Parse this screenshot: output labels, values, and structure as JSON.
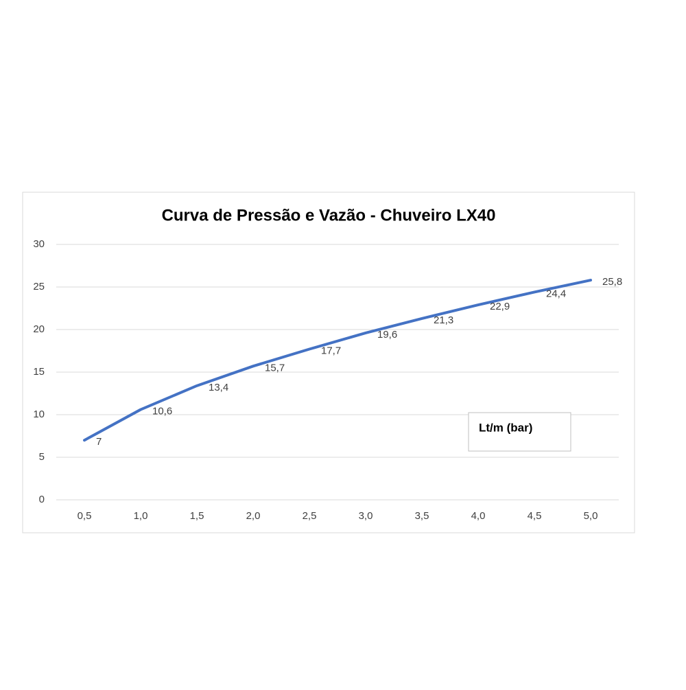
{
  "chart_data": {
    "type": "line",
    "title": "Curva de Pressão e Vazão - Chuveiro LX40",
    "annotation": "Lt/m (bar)",
    "categories": [
      "0,5",
      "1,0",
      "1,5",
      "2,0",
      "2,5",
      "3,0",
      "3,5",
      "4,0",
      "4,5",
      "5,0"
    ],
    "series": [
      {
        "name": "Lt/m",
        "color": "#4472c4",
        "values": [
          7,
          10.6,
          13.4,
          15.7,
          17.7,
          19.6,
          21.3,
          22.9,
          24.4,
          25.8
        ],
        "value_labels": [
          "7",
          "10,6",
          "13,4",
          "15,7",
          "17,7",
          "19,6",
          "21,3",
          "22,9",
          "24,4",
          "25,8"
        ]
      }
    ],
    "ylim": [
      0,
      30
    ],
    "yticks": [
      0,
      5,
      10,
      15,
      20,
      25,
      30
    ],
    "grid": true
  }
}
